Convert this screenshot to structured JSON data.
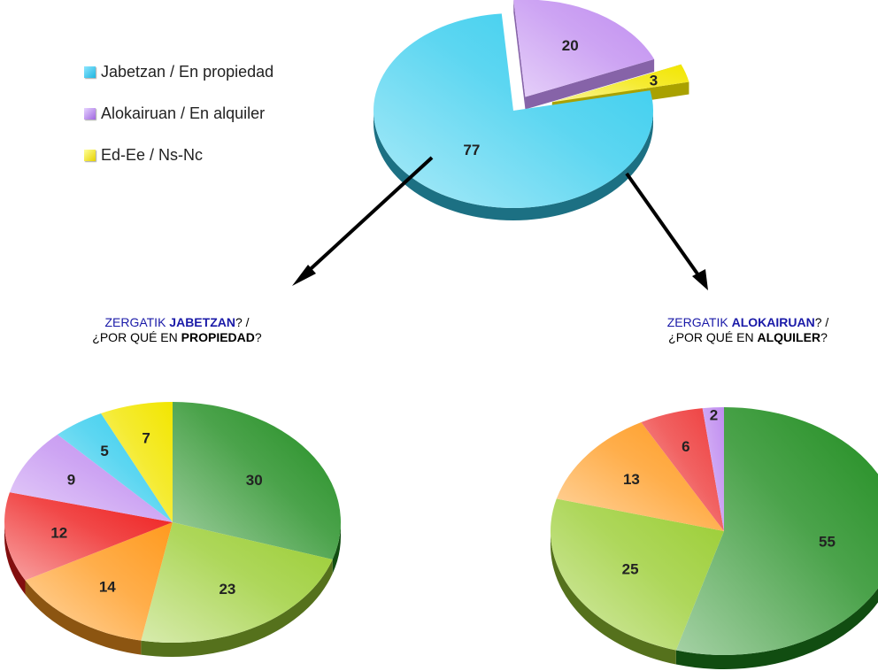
{
  "colors": {
    "cyan": "#33ccee",
    "purple": "#c08df0",
    "yellow": "#f2e600",
    "green": "#1e8c1e",
    "lime": "#9acd32",
    "orange": "#ff9a1e",
    "red": "#ee1a1a",
    "violet": "#c08df0",
    "lightblue": "#33ccee",
    "brightyellow": "#f2e600",
    "pink": "#ee3b3b"
  },
  "legend": [
    {
      "label": "Jabetzan / En propiedad",
      "color": "#33ccee"
    },
    {
      "label": "Alokairuan / En alquiler",
      "color": "#c08df0"
    },
    {
      "label": "Ed-Ee / Ns-Nc",
      "color": "#f2e600"
    }
  ],
  "subtitles": {
    "left": {
      "line1_plain": "ZERGATIK ",
      "line1_bold": "JABETZAN",
      "line1_end": "? /",
      "line2_plain": "¿POR QUÉ EN ",
      "line2_bold": "PROPIEDAD",
      "line2_end": "?"
    },
    "right": {
      "line1_plain": "ZERGATIK ",
      "line1_bold": "ALOKAIRUAN",
      "line1_end": "? /",
      "line2_plain": "¿POR QUÉ EN ",
      "line2_bold": "ALQUILER",
      "line2_end": "?"
    }
  },
  "chart_data": [
    {
      "type": "pie",
      "title": "",
      "labels": [
        "Jabetzan / En propiedad",
        "Alokairuan / En alquiler",
        "Ed-Ee / Ns-Nc"
      ],
      "values": [
        77,
        20,
        3
      ],
      "colors": [
        "#33ccee",
        "#c08df0",
        "#f2e600"
      ]
    },
    {
      "type": "pie",
      "title": "ZERGATIK JABETZAN? / ¿POR QUÉ EN PROPIEDAD?",
      "values": [
        30,
        23,
        14,
        12,
        9,
        5,
        7
      ],
      "colors": [
        "#1e8c1e",
        "#9acd32",
        "#ff9a1e",
        "#ee1a1a",
        "#c08df0",
        "#33ccee",
        "#f2e600"
      ]
    },
    {
      "type": "pie",
      "title": "ZERGATIK ALOKAIRUAN? / ¿POR QUÉ EN ALQUILER?",
      "values": [
        55,
        25,
        13,
        6,
        2
      ],
      "colors": [
        "#1e8c1e",
        "#9acd32",
        "#ff9a1e",
        "#ee3b3b",
        "#c08df0"
      ]
    }
  ]
}
